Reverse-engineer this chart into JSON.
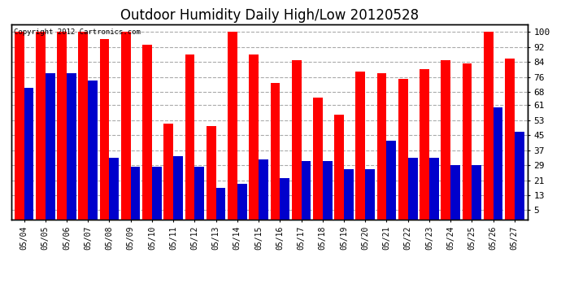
{
  "title": "Outdoor Humidity Daily High/Low 20120528",
  "copyright": "Copyright 2012 Cartronics.com",
  "dates": [
    "05/04",
    "05/05",
    "05/06",
    "05/07",
    "05/08",
    "05/09",
    "05/10",
    "05/11",
    "05/12",
    "05/13",
    "05/14",
    "05/15",
    "05/16",
    "05/17",
    "05/18",
    "05/19",
    "05/20",
    "05/21",
    "05/22",
    "05/23",
    "05/24",
    "05/25",
    "05/26",
    "05/27"
  ],
  "highs": [
    100,
    100,
    100,
    100,
    96,
    100,
    93,
    51,
    88,
    50,
    100,
    88,
    73,
    85,
    65,
    56,
    79,
    78,
    75,
    80,
    85,
    83,
    100,
    86
  ],
  "lows": [
    70,
    78,
    78,
    74,
    33,
    28,
    28,
    34,
    28,
    17,
    19,
    32,
    22,
    31,
    31,
    27,
    27,
    42,
    33,
    33,
    29,
    29,
    60,
    47
  ],
  "high_color": "#ff0000",
  "low_color": "#0000cc",
  "background_color": "#ffffff",
  "yticks": [
    5,
    13,
    21,
    29,
    37,
    45,
    53,
    61,
    68,
    76,
    84,
    92,
    100
  ],
  "ylim": [
    0,
    104
  ],
  "grid_color": "#aaaaaa",
  "title_fontsize": 12,
  "bar_width": 0.45
}
